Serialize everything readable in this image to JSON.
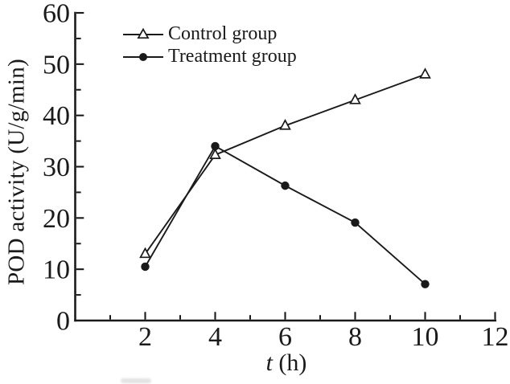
{
  "figure": {
    "background_color": "#ffffff",
    "ink_color": "#1a1a1a"
  },
  "chart_data": {
    "type": "line",
    "title": "",
    "xlabel": "t (h)",
    "xlabel_parts": {
      "italic": "t",
      "rest": " (h)"
    },
    "ylabel": "POD activity (U/g/min)",
    "x": [
      2,
      4,
      6,
      8,
      10
    ],
    "series": [
      {
        "name": "Control group",
        "marker": "open-triangle",
        "values": [
          13,
          32.3,
          38,
          43,
          48
        ]
      },
      {
        "name": "Treatment group",
        "marker": "filled-circle",
        "values": [
          10.5,
          34,
          26.3,
          19.1,
          7.1
        ]
      }
    ],
    "xlim": [
      0,
      12
    ],
    "ylim": [
      0,
      60
    ],
    "x_major_ticks": [
      2,
      4,
      6,
      8,
      10,
      12
    ],
    "x_minor_ticks": [
      1,
      3,
      5,
      7,
      9,
      11
    ],
    "y_major_ticks": [
      0,
      10,
      20,
      30,
      40,
      50,
      60
    ],
    "y_minor_ticks": [
      5,
      15,
      25,
      35,
      45,
      55
    ],
    "grid": false,
    "legend_position": "upper-left-inside"
  }
}
